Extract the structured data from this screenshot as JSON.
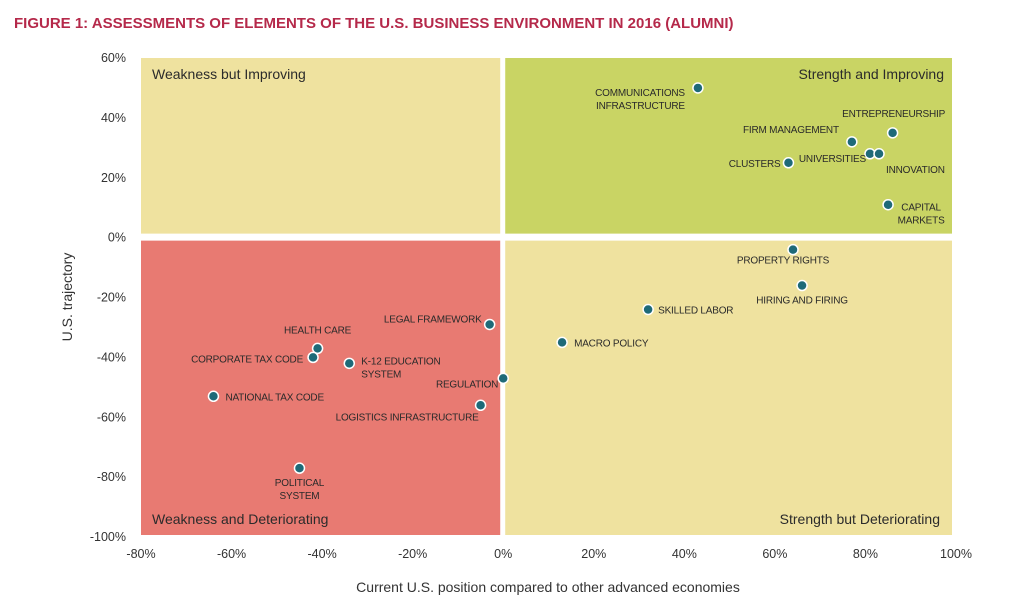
{
  "chart_data": {
    "type": "scatter",
    "title": "FIGURE 1: ASSESSMENTS OF ELEMENTS OF THE U.S. BUSINESS ENVIRONMENT IN 2016 (ALUMNI)",
    "xlabel": "Current U.S. position compared to other advanced economies",
    "ylabel": "U.S. trajectory",
    "xlim": [
      -80,
      100
    ],
    "ylim": [
      -100,
      60
    ],
    "x_ticks": [
      "-80%",
      "-60%",
      "-40%",
      "-20%",
      "0%",
      "20%",
      "40%",
      "60%",
      "80%",
      "100%"
    ],
    "y_ticks": [
      "60%",
      "40%",
      "20%",
      "0%",
      "-20%",
      "-40%",
      "-60%",
      "-80%",
      "-100%"
    ],
    "grid": false,
    "legend": "none",
    "quadrants": [
      {
        "label": "Weakness but Improving",
        "color": "#efe29f"
      },
      {
        "label": "Strength and Improving",
        "color": "#c9d464"
      },
      {
        "label": "Weakness and Deteriorating",
        "color": "#e87a72"
      },
      {
        "label": "Strength but Deteriorating",
        "color": "#efe29f"
      }
    ],
    "point_color": "#1e6a78",
    "points": [
      {
        "label": [
          "COMMUNICATIONS",
          "INFRASTRUCTURE"
        ],
        "x": 43,
        "y": 50
      },
      {
        "label": [
          "FIRM MANAGEMENT"
        ],
        "x": 77,
        "y": 32
      },
      {
        "label": [
          "ENTREPRENEURSHIP"
        ],
        "x": 86,
        "y": 35
      },
      {
        "label": [
          "UNIVERSITIES"
        ],
        "x": 81,
        "y": 28
      },
      {
        "label": [
          "INNOVATION"
        ],
        "x": 83,
        "y": 28
      },
      {
        "label": [
          "CLUSTERS"
        ],
        "x": 63,
        "y": 25
      },
      {
        "label": [
          "CAPITAL",
          "MARKETS"
        ],
        "x": 85,
        "y": 11
      },
      {
        "label": [
          "PROPERTY RIGHTS"
        ],
        "x": 64,
        "y": -4
      },
      {
        "label": [
          "HIRING AND FIRING"
        ],
        "x": 66,
        "y": -16
      },
      {
        "label": [
          "SKILLED LABOR"
        ],
        "x": 32,
        "y": -24
      },
      {
        "label": [
          "MACRO POLICY"
        ],
        "x": 13,
        "y": -35
      },
      {
        "label": [
          "LEGAL FRAMEWORK"
        ],
        "x": -3,
        "y": -29
      },
      {
        "label": [
          "HEALTH CARE"
        ],
        "x": -41,
        "y": -37
      },
      {
        "label": [
          "CORPORATE TAX CODE"
        ],
        "x": -42,
        "y": -40
      },
      {
        "label": [
          "K-12 EDUCATION",
          "SYSTEM"
        ],
        "x": -34,
        "y": -42
      },
      {
        "label": [
          "REGULATION"
        ],
        "x": 0,
        "y": -47
      },
      {
        "label": [
          "NATIONAL TAX CODE"
        ],
        "x": -64,
        "y": -53
      },
      {
        "label": [
          "LOGISTICS INFRASTRUCTURE"
        ],
        "x": -5,
        "y": -56
      },
      {
        "label": [
          "POLITICAL",
          "SYSTEM"
        ],
        "x": -45,
        "y": -77
      }
    ]
  }
}
